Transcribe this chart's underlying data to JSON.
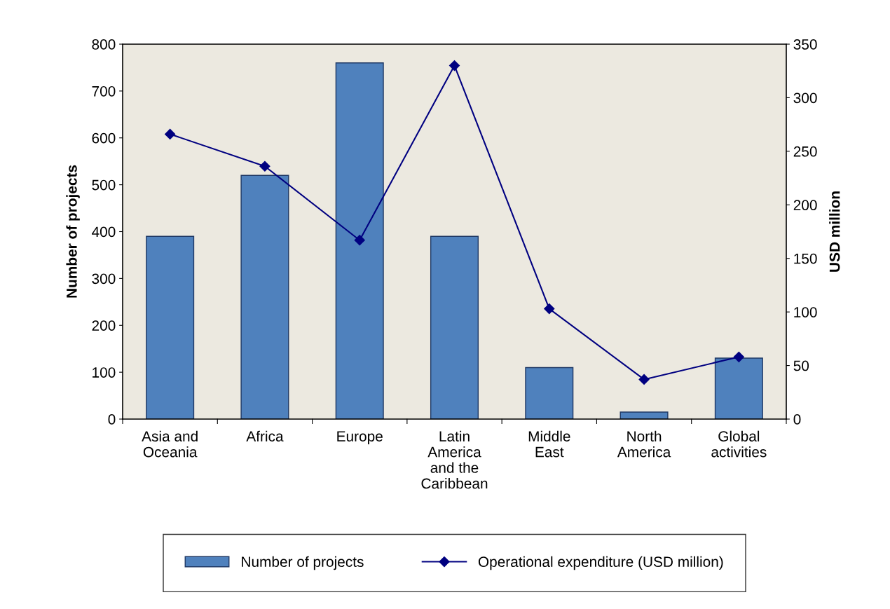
{
  "chart_data": {
    "type": "bar",
    "categories": [
      "Asia and\nOceania",
      "Africa",
      "Europe",
      "Latin\nAmerica\nand the\nCaribbean",
      "Middle\nEast",
      "North\nAmerica",
      "Global\nactivities"
    ],
    "series": [
      {
        "name": "Number of projects",
        "color": "#4f81bd",
        "values": [
          390,
          520,
          760,
          390,
          110,
          15,
          130
        ]
      },
      {
        "name": "Operational expenditure (USD million)",
        "type": "line",
        "axis": "y2",
        "color": "#000080",
        "marker": "diamond",
        "values": [
          266,
          236,
          167,
          330,
          103,
          37,
          58
        ]
      }
    ],
    "ylabel": "Number of projects",
    "y2label": "USD million",
    "ylim": [
      0,
      800
    ],
    "yticks": [
      0,
      100,
      200,
      300,
      400,
      500,
      600,
      700,
      800
    ],
    "y2lim": [
      0,
      350
    ],
    "y2ticks": [
      0,
      50,
      100,
      150,
      200,
      250,
      300,
      350
    ],
    "grid": false,
    "legend": "bottom"
  }
}
